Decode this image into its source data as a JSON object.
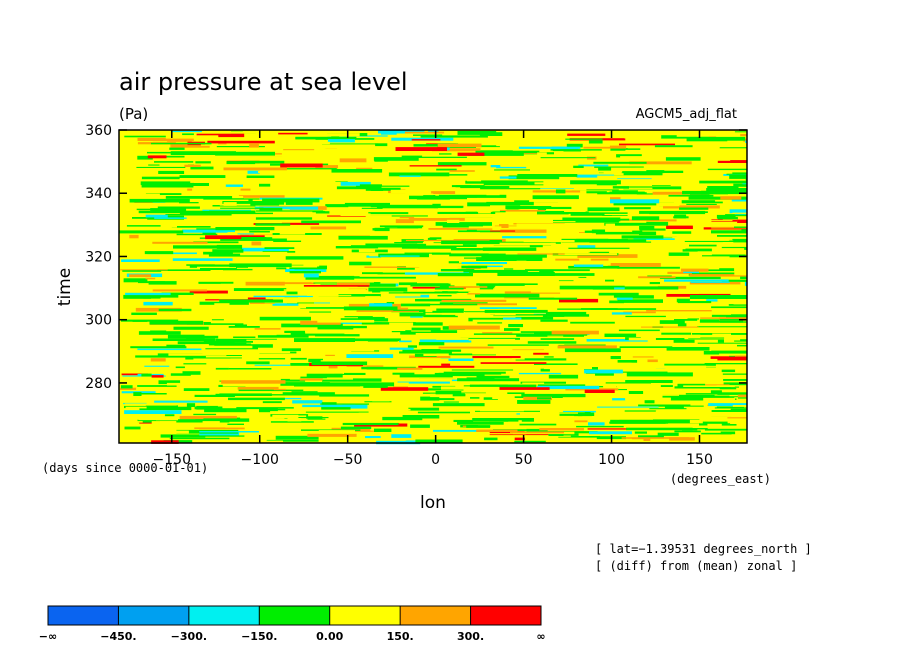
{
  "chart_data": {
    "type": "heatmap",
    "title": "air pressure at sea level",
    "units": "(Pa)",
    "model": "AGCM5_adj_flat",
    "xlabel": "lon",
    "ylabel": "time",
    "x_unit": "(degrees_east)",
    "y_unit": "(days since 0000-01-01)",
    "xlim": [
      -180,
      177
    ],
    "ylim": [
      261,
      360
    ],
    "x_ticks": [
      -150,
      -100,
      -50,
      0,
      50,
      100,
      150
    ],
    "y_ticks": [
      280,
      300,
      320,
      340,
      360
    ],
    "x_tick_labels": [
      "−150",
      "−100",
      "−50",
      "0",
      "50",
      "100",
      "150"
    ],
    "y_tick_labels": [
      "280",
      "300",
      "320",
      "340",
      "360"
    ],
    "notes": [
      "[ lat=−1.39531 degrees_north ]",
      "[ (diff) from (mean) zonal ]"
    ],
    "colorbar": {
      "levels": [
        "−∞",
        "−450.",
        "−300.",
        "−150.",
        "0.00",
        "150.",
        "300.",
        "∞"
      ],
      "colors": [
        "#0a64f0",
        "#00a0f0",
        "#00f0f0",
        "#00ee00",
        "#ffff00",
        "#ffa500",
        "#ff0000"
      ]
    }
  }
}
